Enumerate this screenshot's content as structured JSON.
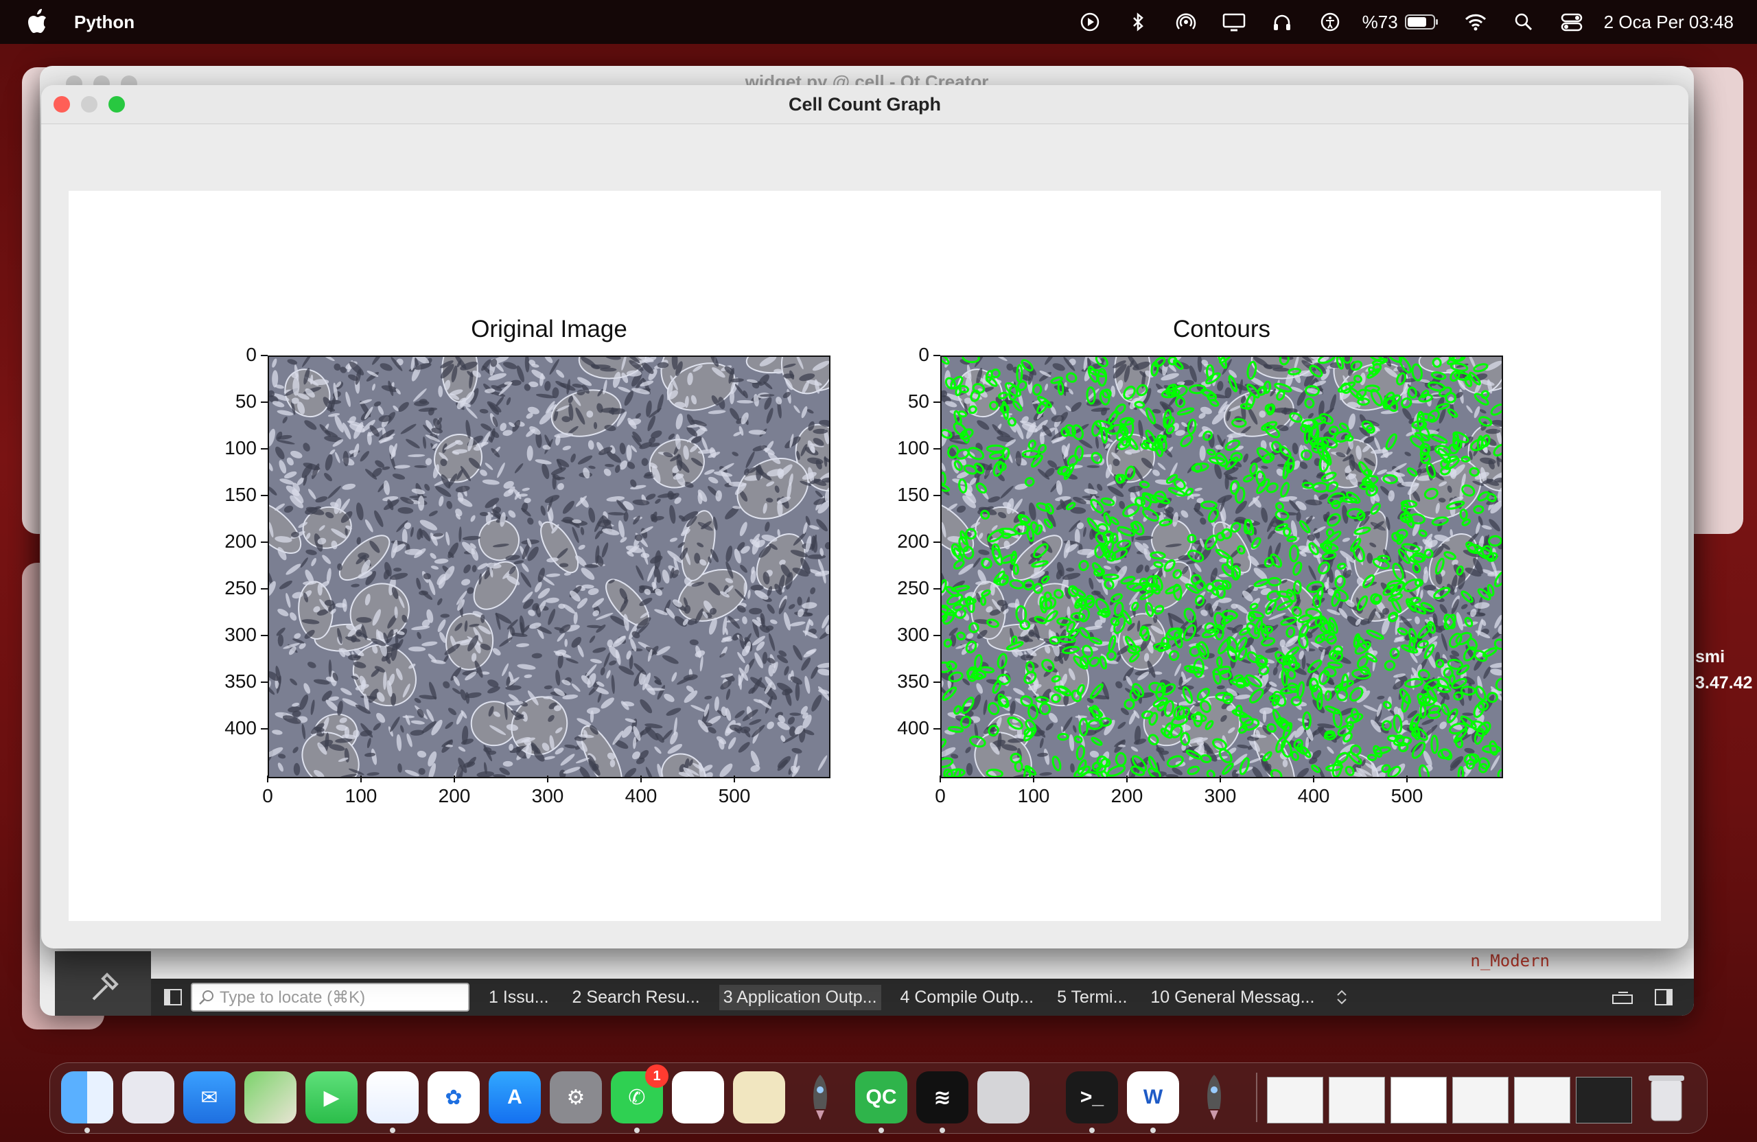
{
  "menubar": {
    "app_name": "Python",
    "battery": "%73",
    "datetime": "2 Oca Per  03:48",
    "icons": [
      "play-icon",
      "bluetooth-icon",
      "airdrop-icon",
      "display-icon",
      "headphones-icon",
      "accessibility-icon",
      "battery-icon",
      "wifi-icon",
      "search-icon",
      "control-center-icon"
    ]
  },
  "background_window": {
    "title": "widget.py @ cell - Qt Creator",
    "locate_placeholder": "Type to locate (⌘K)",
    "output_tabs": [
      "1  Issu...",
      "2  Search Resu...",
      "3  Application Outp...",
      "4  Compile Outp...",
      "5  Termi...",
      "10  General Messag..."
    ],
    "active_tab_index": 2,
    "editor_snippet": "n_Modern"
  },
  "side_text": {
    "line1": "smi",
    "line2": "3.47.42"
  },
  "window": {
    "title": "Cell Count Graph"
  },
  "chart_data": [
    {
      "type": "image",
      "title": "Original Image",
      "x_ticks": [
        "0",
        "100",
        "200",
        "300",
        "400",
        "500"
      ],
      "y_ticks": [
        "0",
        "50",
        "100",
        "150",
        "200",
        "250",
        "300",
        "350",
        "400"
      ],
      "xlim": [
        0,
        600
      ],
      "ylim": [
        450,
        0
      ]
    },
    {
      "type": "image",
      "title": "Contours",
      "x_ticks": [
        "0",
        "100",
        "200",
        "300",
        "400",
        "500"
      ],
      "y_ticks": [
        "0",
        "50",
        "100",
        "150",
        "200",
        "250",
        "300",
        "350",
        "400"
      ],
      "xlim": [
        0,
        600
      ],
      "ylim": [
        450,
        0
      ],
      "contour_color": "#00ff00"
    }
  ],
  "dock": {
    "apps": [
      "Finder",
      "Launchpad",
      "Mail",
      "Maps",
      "FaceTime",
      "Safari",
      "Photos",
      "App Store",
      "System Settings",
      "WhatsApp",
      "Freeform",
      "Python Launcher",
      "Rocket",
      "Qt Creator",
      "Spotify",
      "iPhone Mirroring",
      "Terminal",
      "Microsoft Word",
      "Rocket 2"
    ],
    "whatsapp_badge": "1",
    "qt_label": "QC",
    "word_label": "W",
    "trash": "Trash"
  },
  "colors": {
    "close": "#ff5f57",
    "minimize": "#febc2e",
    "maximize": "#28c840",
    "contour": "#00ff00"
  }
}
